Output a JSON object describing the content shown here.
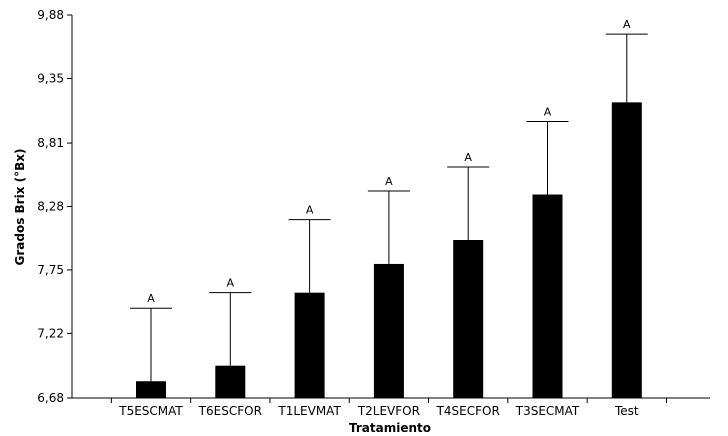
{
  "chart_data": {
    "type": "bar",
    "title": "",
    "xlabel": "Tratamiento",
    "ylabel": "Grados Brix (°Bx)",
    "ylim": [
      6.68,
      9.88
    ],
    "yticks": [
      "6,68",
      "7,22",
      "7,75",
      "8,28",
      "8,81",
      "9,35",
      "9,88"
    ],
    "ytick_values": [
      6.68,
      7.22,
      7.75,
      8.28,
      8.81,
      9.35,
      9.88
    ],
    "categories": [
      "T5ESCMAT",
      "T6ESCFOR",
      "T1LEVMAT",
      "T2LEVFOR",
      "T4SECFOR",
      "T3SECMAT",
      "Test"
    ],
    "values": [
      6.82,
      6.95,
      7.56,
      7.8,
      8.0,
      8.38,
      9.15
    ],
    "error_upper": [
      7.43,
      7.56,
      8.17,
      8.41,
      8.61,
      8.99,
      9.72
    ],
    "significance": [
      "A",
      "A",
      "A",
      "A",
      "A",
      "A",
      "A"
    ],
    "grid": false,
    "legend": "none",
    "bar_color": "#000000"
  }
}
